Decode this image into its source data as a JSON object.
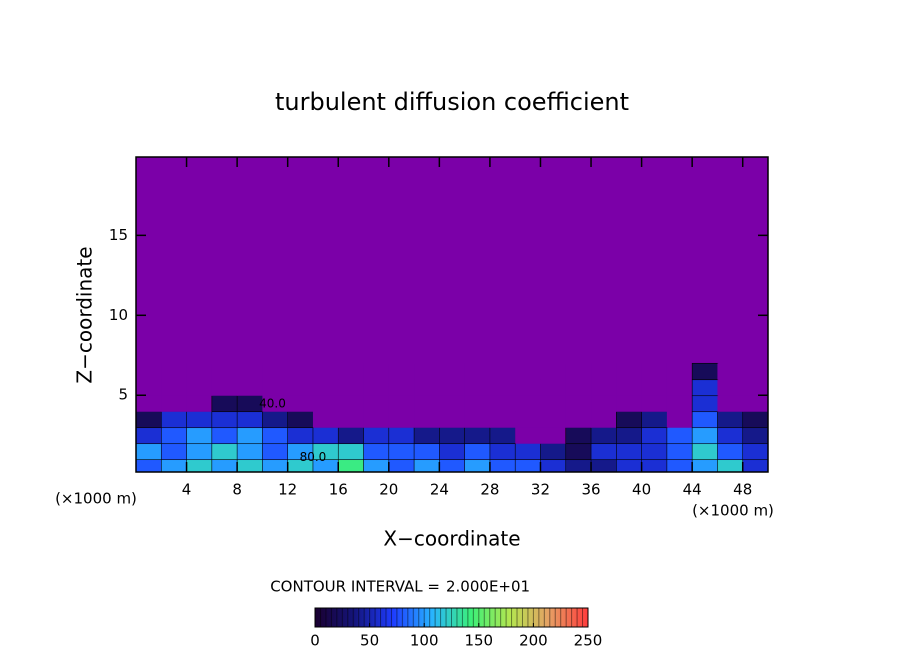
{
  "chart_data": {
    "type": "contour",
    "title": "turbulent diffusion coefficient",
    "xlabel": "X−coordinate",
    "ylabel": "Z−coordinate",
    "unit_label": "(×1000 m)",
    "xlim": [
      0,
      50
    ],
    "ylim": [
      0.2,
      19.9
    ],
    "xticks": [
      4,
      8,
      12,
      16,
      20,
      24,
      28,
      32,
      36,
      40,
      44,
      48
    ],
    "yticks": [
      5,
      10,
      15
    ],
    "x": [
      1,
      3,
      5,
      7,
      9,
      11,
      13,
      15,
      17,
      19,
      21,
      23,
      25,
      27,
      29,
      31,
      33,
      35,
      37,
      39,
      41,
      43,
      45,
      47,
      49
    ],
    "z": [
      0.5,
      1.5,
      2.5,
      3.5,
      4.5,
      5.5,
      6.5
    ],
    "values": [
      [
        90,
        110,
        120,
        100,
        130,
        110,
        120,
        100,
        140,
        110,
        90,
        100,
        80,
        100,
        90,
        80,
        60,
        50,
        40,
        70,
        60,
        80,
        100,
        130,
        70
      ],
      [
        100,
        90,
        110,
        120,
        100,
        90,
        100,
        130,
        120,
        90,
        80,
        90,
        70,
        80,
        70,
        60,
        40,
        30,
        60,
        60,
        70,
        90,
        120,
        90,
        60
      ],
      [
        60,
        90,
        100,
        90,
        110,
        80,
        70,
        60,
        40,
        60,
        70,
        50,
        40,
        50,
        40,
        0,
        0,
        20,
        40,
        50,
        60,
        80,
        100,
        60,
        40
      ],
      [
        20,
        60,
        70,
        60,
        70,
        40,
        20,
        0,
        0,
        0,
        0,
        0,
        0,
        0,
        0,
        0,
        0,
        0,
        0,
        30,
        40,
        0,
        80,
        40,
        30
      ],
      [
        0,
        0,
        0,
        30,
        20,
        0,
        0,
        0,
        0,
        0,
        0,
        0,
        0,
        0,
        0,
        0,
        0,
        0,
        0,
        0,
        0,
        0,
        70,
        0,
        0
      ],
      [
        0,
        0,
        0,
        0,
        0,
        0,
        0,
        0,
        0,
        0,
        0,
        0,
        0,
        0,
        0,
        0,
        0,
        0,
        0,
        0,
        0,
        0,
        60,
        0,
        0
      ],
      [
        0,
        0,
        0,
        0,
        0,
        0,
        0,
        0,
        0,
        0,
        0,
        0,
        0,
        0,
        0,
        0,
        0,
        0,
        0,
        0,
        0,
        0,
        30,
        0,
        0
      ]
    ],
    "background_color": "#7b00a8",
    "colormap": [
      "#1a0030",
      "#14147a",
      "#1e3cff",
      "#28b4ff",
      "#3cf078",
      "#b4e650",
      "#e6a064",
      "#ff3c3c"
    ],
    "contour_interval": {
      "value": 20,
      "label": "2.000E+01"
    },
    "colorbar_title": "CONTOUR INTERVAL =",
    "clim": [
      0,
      250
    ],
    "cticks": [
      0,
      50,
      100,
      150,
      200,
      250
    ],
    "annotations": [
      {
        "text": "40.0",
        "x": 10.8,
        "z": 4.45
      },
      {
        "text": "80.0",
        "x": 14,
        "z": 1.1
      }
    ]
  }
}
